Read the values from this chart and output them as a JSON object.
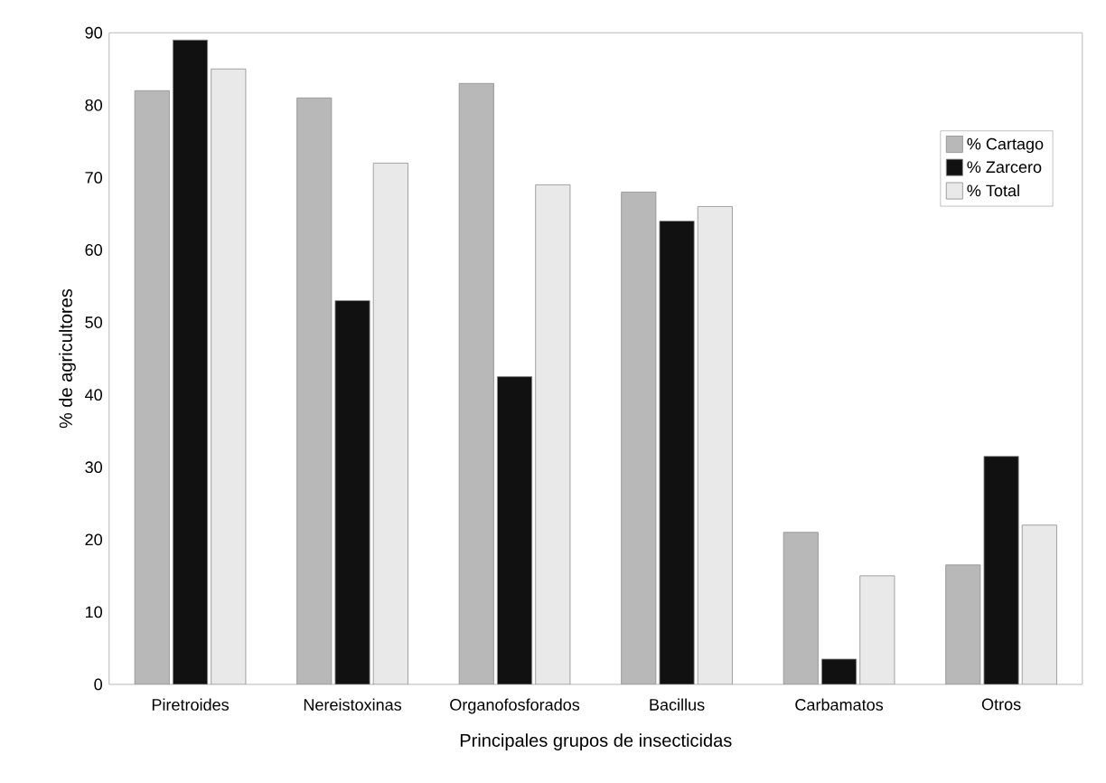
{
  "chart_data": {
    "type": "bar",
    "xlabel": "Principales grupos de insecticidas",
    "ylabel": "% de agricultores",
    "categories": [
      "Piretroides",
      "Nereistoxinas",
      "Organofosforados",
      "Bacillus",
      "Carbamatos",
      "Otros"
    ],
    "series": [
      {
        "name": "% Cartago",
        "color": "#b8b8b8",
        "values": [
          82,
          81,
          83,
          68,
          21,
          16.5
        ]
      },
      {
        "name": "% Zarcero",
        "color": "#111111",
        "values": [
          89,
          53,
          42.5,
          64,
          3.5,
          31.5
        ]
      },
      {
        "name": "% Total",
        "color": "#e9e9e9",
        "values": [
          85,
          72,
          69,
          66,
          15,
          22
        ]
      }
    ],
    "ylim": [
      0,
      90
    ],
    "yticks": [
      0,
      10,
      20,
      30,
      40,
      50,
      60,
      70,
      80,
      90
    ],
    "grid": false,
    "legend": "top right"
  }
}
